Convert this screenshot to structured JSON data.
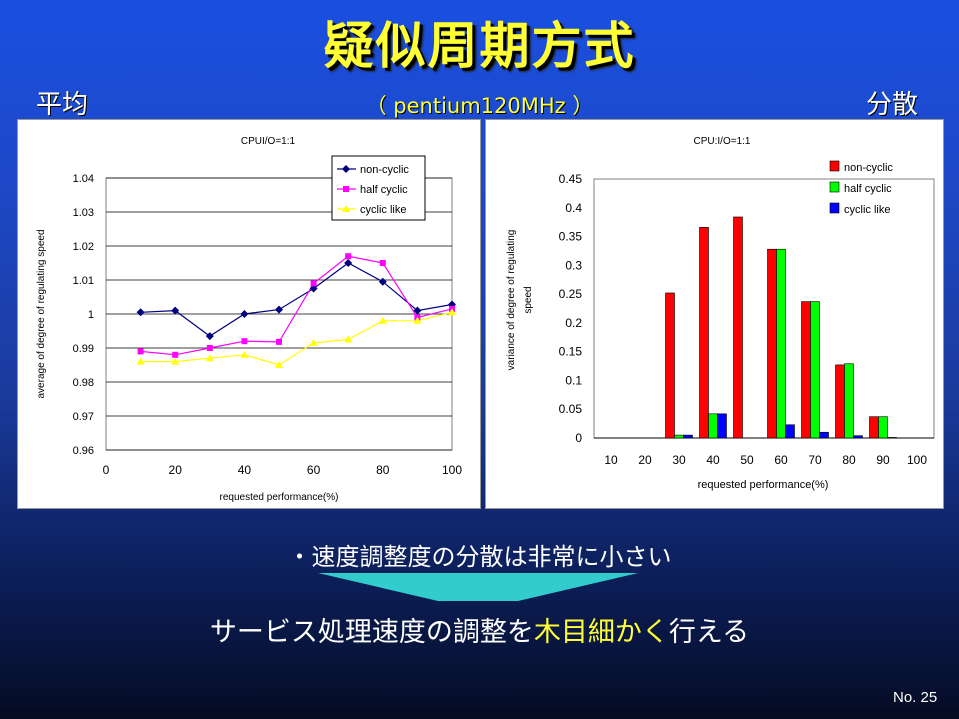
{
  "slide": {
    "title": "疑似周期方式",
    "subtitle": "（ pentium120MHz ）",
    "left_label": "平均",
    "right_label": "分散",
    "bullet": "・速度調整度の分散は非常に小さい",
    "conclusion_pre": "サービス処理速度の調整を",
    "conclusion_highlight": "木目細かく",
    "conclusion_post": "行える",
    "page_number": "No. 25"
  },
  "colors": {
    "title": "#ffff33",
    "highlight": "#ffff33",
    "non_cyclic_line": "#000080",
    "half_cyclic_line": "#ff00ff",
    "cyclic_like_line": "#ffff00",
    "non_cyclic_bar": "#ff0000",
    "half_cyclic_bar": "#00ff00",
    "cyclic_like_bar": "#0000ff",
    "arrow": "#33cccc"
  },
  "chart_data": [
    {
      "type": "line",
      "title": "CPUI/O=1:1",
      "xlabel": "requested performance(%)",
      "ylabel": "average of degree of regulating speed",
      "xlim": [
        0,
        100
      ],
      "ylim": [
        0.96,
        1.04
      ],
      "x_ticks": [
        "0",
        "20",
        "40",
        "60",
        "80",
        "100"
      ],
      "y_ticks": [
        "1.04",
        "1.03",
        "1.02",
        "1.01",
        "1",
        "0.99",
        "0.98",
        "0.97",
        "0.96"
      ],
      "grid": "horizontal",
      "legend_position": "top-right",
      "x": [
        10,
        20,
        30,
        40,
        50,
        60,
        70,
        80,
        90,
        100
      ],
      "series": [
        {
          "name": "non-cyclic",
          "values": [
            1.0005,
            1.001,
            0.9935,
            1.0,
            1.0013,
            1.0075,
            1.015,
            1.0095,
            1.001,
            1.0028
          ]
        },
        {
          "name": "half cyclic",
          "values": [
            0.989,
            0.988,
            0.99,
            0.992,
            0.9918,
            1.009,
            1.017,
            1.015,
            0.999,
            1.0015
          ]
        },
        {
          "name": "cyclic like",
          "values": [
            0.986,
            0.986,
            0.987,
            0.988,
            0.985,
            0.9915,
            0.9925,
            0.998,
            0.998,
            1.0005
          ]
        }
      ]
    },
    {
      "type": "bar",
      "title": "CPU:I/O=1:1",
      "xlabel": "requested performance(%)",
      "ylabel": "variance of degree of regulating speed",
      "ylim": [
        0,
        0.45
      ],
      "y_ticks": [
        "0.45",
        "0.4",
        "0.35",
        "0.3",
        "0.25",
        "0.2",
        "0.15",
        "0.1",
        "0.05",
        "0"
      ],
      "grid": "none",
      "legend_position": "top-right",
      "categories": [
        "10",
        "20",
        "30",
        "40",
        "50",
        "60",
        "70",
        "80",
        "90",
        "100"
      ],
      "series": [
        {
          "name": "non-cyclic",
          "values": [
            0,
            0,
            0.252,
            0.366,
            0.384,
            0.328,
            0.237,
            0.127,
            0.037,
            0
          ]
        },
        {
          "name": "half cyclic",
          "values": [
            0,
            0,
            0.005,
            0.042,
            0,
            0.328,
            0.237,
            0.129,
            0.037,
            0
          ]
        },
        {
          "name": "cyclic like",
          "values": [
            0,
            0,
            0.005,
            0.042,
            0,
            0.023,
            0.01,
            0.004,
            0.001,
            0
          ]
        }
      ]
    }
  ]
}
